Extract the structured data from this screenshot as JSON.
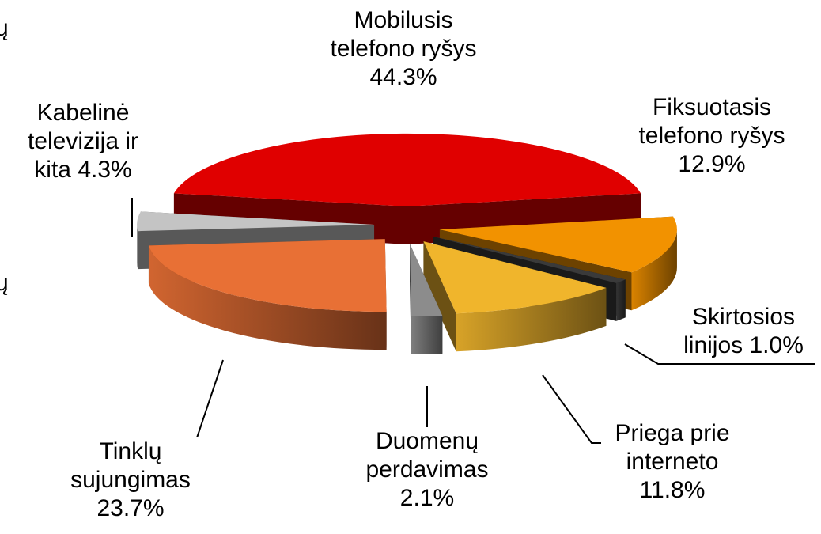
{
  "chart_data": {
    "type": "pie3d",
    "categories": [
      "Mobilusis telefono ryšys",
      "Fiksuotasis telefono ryšys",
      "Skirtosios linijos",
      "Priega prie interneto",
      "Duomenų perdavimas",
      "Tinklų sujungimas",
      "Kabelinė televizija ir kita"
    ],
    "values": [
      44.3,
      12.9,
      1.0,
      11.8,
      2.1,
      23.7,
      4.3
    ],
    "value_labels": [
      "44.3%",
      "12.9%",
      "1.0%",
      "11.8%",
      "2.1%",
      "23.7%",
      "4.3%"
    ],
    "colors": [
      "#e00000",
      "#f29200",
      "#3a3a3a",
      "#f0b52c",
      "#8c8c8c",
      "#e87035",
      "#c4c4c4"
    ],
    "annotations": [
      "ų",
      "ų"
    ]
  }
}
